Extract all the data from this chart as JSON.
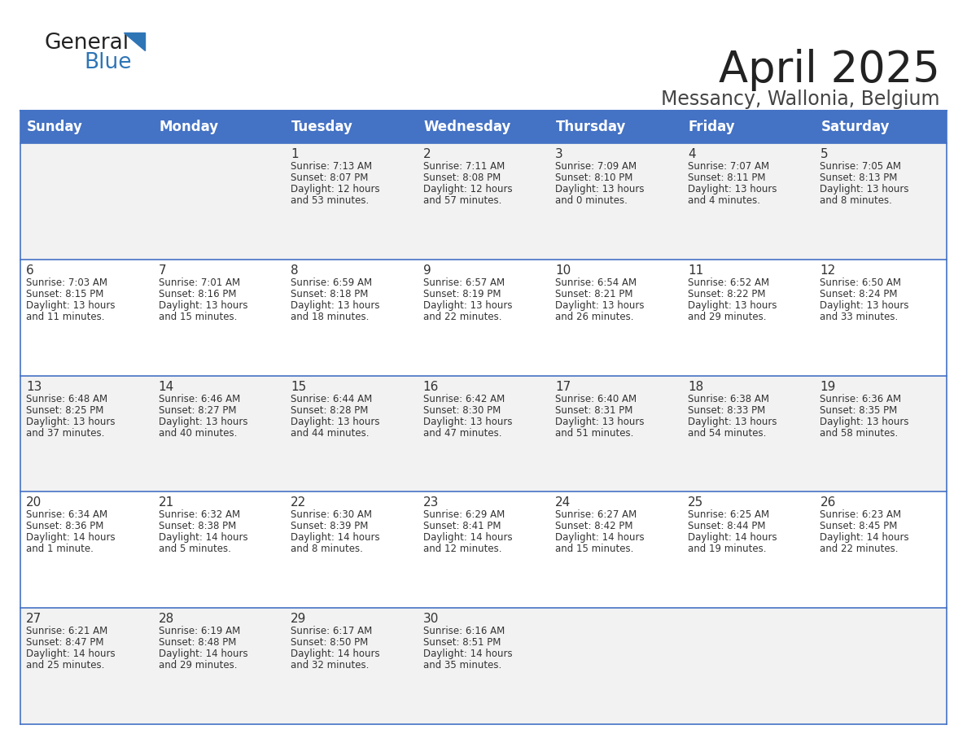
{
  "title": "April 2025",
  "subtitle": "Messancy, Wallonia, Belgium",
  "header_bg_color": "#4472C4",
  "header_text_color": "#FFFFFF",
  "row_bg_even": "#F2F2F2",
  "row_bg_odd": "#FFFFFF",
  "border_color": "#4472C4",
  "text_color": "#333333",
  "days_of_week": [
    "Sunday",
    "Monday",
    "Tuesday",
    "Wednesday",
    "Thursday",
    "Friday",
    "Saturday"
  ],
  "calendar": [
    [
      {
        "day": "",
        "sunrise": "",
        "sunset": "",
        "daylight": ""
      },
      {
        "day": "",
        "sunrise": "",
        "sunset": "",
        "daylight": ""
      },
      {
        "day": "1",
        "sunrise": "Sunrise: 7:13 AM",
        "sunset": "Sunset: 8:07 PM",
        "daylight": "Daylight: 12 hours\nand 53 minutes."
      },
      {
        "day": "2",
        "sunrise": "Sunrise: 7:11 AM",
        "sunset": "Sunset: 8:08 PM",
        "daylight": "Daylight: 12 hours\nand 57 minutes."
      },
      {
        "day": "3",
        "sunrise": "Sunrise: 7:09 AM",
        "sunset": "Sunset: 8:10 PM",
        "daylight": "Daylight: 13 hours\nand 0 minutes."
      },
      {
        "day": "4",
        "sunrise": "Sunrise: 7:07 AM",
        "sunset": "Sunset: 8:11 PM",
        "daylight": "Daylight: 13 hours\nand 4 minutes."
      },
      {
        "day": "5",
        "sunrise": "Sunrise: 7:05 AM",
        "sunset": "Sunset: 8:13 PM",
        "daylight": "Daylight: 13 hours\nand 8 minutes."
      }
    ],
    [
      {
        "day": "6",
        "sunrise": "Sunrise: 7:03 AM",
        "sunset": "Sunset: 8:15 PM",
        "daylight": "Daylight: 13 hours\nand 11 minutes."
      },
      {
        "day": "7",
        "sunrise": "Sunrise: 7:01 AM",
        "sunset": "Sunset: 8:16 PM",
        "daylight": "Daylight: 13 hours\nand 15 minutes."
      },
      {
        "day": "8",
        "sunrise": "Sunrise: 6:59 AM",
        "sunset": "Sunset: 8:18 PM",
        "daylight": "Daylight: 13 hours\nand 18 minutes."
      },
      {
        "day": "9",
        "sunrise": "Sunrise: 6:57 AM",
        "sunset": "Sunset: 8:19 PM",
        "daylight": "Daylight: 13 hours\nand 22 minutes."
      },
      {
        "day": "10",
        "sunrise": "Sunrise: 6:54 AM",
        "sunset": "Sunset: 8:21 PM",
        "daylight": "Daylight: 13 hours\nand 26 minutes."
      },
      {
        "day": "11",
        "sunrise": "Sunrise: 6:52 AM",
        "sunset": "Sunset: 8:22 PM",
        "daylight": "Daylight: 13 hours\nand 29 minutes."
      },
      {
        "day": "12",
        "sunrise": "Sunrise: 6:50 AM",
        "sunset": "Sunset: 8:24 PM",
        "daylight": "Daylight: 13 hours\nand 33 minutes."
      }
    ],
    [
      {
        "day": "13",
        "sunrise": "Sunrise: 6:48 AM",
        "sunset": "Sunset: 8:25 PM",
        "daylight": "Daylight: 13 hours\nand 37 minutes."
      },
      {
        "day": "14",
        "sunrise": "Sunrise: 6:46 AM",
        "sunset": "Sunset: 8:27 PM",
        "daylight": "Daylight: 13 hours\nand 40 minutes."
      },
      {
        "day": "15",
        "sunrise": "Sunrise: 6:44 AM",
        "sunset": "Sunset: 8:28 PM",
        "daylight": "Daylight: 13 hours\nand 44 minutes."
      },
      {
        "day": "16",
        "sunrise": "Sunrise: 6:42 AM",
        "sunset": "Sunset: 8:30 PM",
        "daylight": "Daylight: 13 hours\nand 47 minutes."
      },
      {
        "day": "17",
        "sunrise": "Sunrise: 6:40 AM",
        "sunset": "Sunset: 8:31 PM",
        "daylight": "Daylight: 13 hours\nand 51 minutes."
      },
      {
        "day": "18",
        "sunrise": "Sunrise: 6:38 AM",
        "sunset": "Sunset: 8:33 PM",
        "daylight": "Daylight: 13 hours\nand 54 minutes."
      },
      {
        "day": "19",
        "sunrise": "Sunrise: 6:36 AM",
        "sunset": "Sunset: 8:35 PM",
        "daylight": "Daylight: 13 hours\nand 58 minutes."
      }
    ],
    [
      {
        "day": "20",
        "sunrise": "Sunrise: 6:34 AM",
        "sunset": "Sunset: 8:36 PM",
        "daylight": "Daylight: 14 hours\nand 1 minute."
      },
      {
        "day": "21",
        "sunrise": "Sunrise: 6:32 AM",
        "sunset": "Sunset: 8:38 PM",
        "daylight": "Daylight: 14 hours\nand 5 minutes."
      },
      {
        "day": "22",
        "sunrise": "Sunrise: 6:30 AM",
        "sunset": "Sunset: 8:39 PM",
        "daylight": "Daylight: 14 hours\nand 8 minutes."
      },
      {
        "day": "23",
        "sunrise": "Sunrise: 6:29 AM",
        "sunset": "Sunset: 8:41 PM",
        "daylight": "Daylight: 14 hours\nand 12 minutes."
      },
      {
        "day": "24",
        "sunrise": "Sunrise: 6:27 AM",
        "sunset": "Sunset: 8:42 PM",
        "daylight": "Daylight: 14 hours\nand 15 minutes."
      },
      {
        "day": "25",
        "sunrise": "Sunrise: 6:25 AM",
        "sunset": "Sunset: 8:44 PM",
        "daylight": "Daylight: 14 hours\nand 19 minutes."
      },
      {
        "day": "26",
        "sunrise": "Sunrise: 6:23 AM",
        "sunset": "Sunset: 8:45 PM",
        "daylight": "Daylight: 14 hours\nand 22 minutes."
      }
    ],
    [
      {
        "day": "27",
        "sunrise": "Sunrise: 6:21 AM",
        "sunset": "Sunset: 8:47 PM",
        "daylight": "Daylight: 14 hours\nand 25 minutes."
      },
      {
        "day": "28",
        "sunrise": "Sunrise: 6:19 AM",
        "sunset": "Sunset: 8:48 PM",
        "daylight": "Daylight: 14 hours\nand 29 minutes."
      },
      {
        "day": "29",
        "sunrise": "Sunrise: 6:17 AM",
        "sunset": "Sunset: 8:50 PM",
        "daylight": "Daylight: 14 hours\nand 32 minutes."
      },
      {
        "day": "30",
        "sunrise": "Sunrise: 6:16 AM",
        "sunset": "Sunset: 8:51 PM",
        "daylight": "Daylight: 14 hours\nand 35 minutes."
      },
      {
        "day": "",
        "sunrise": "",
        "sunset": "",
        "daylight": ""
      },
      {
        "day": "",
        "sunrise": "",
        "sunset": "",
        "daylight": ""
      },
      {
        "day": "",
        "sunrise": "",
        "sunset": "",
        "daylight": ""
      }
    ]
  ]
}
